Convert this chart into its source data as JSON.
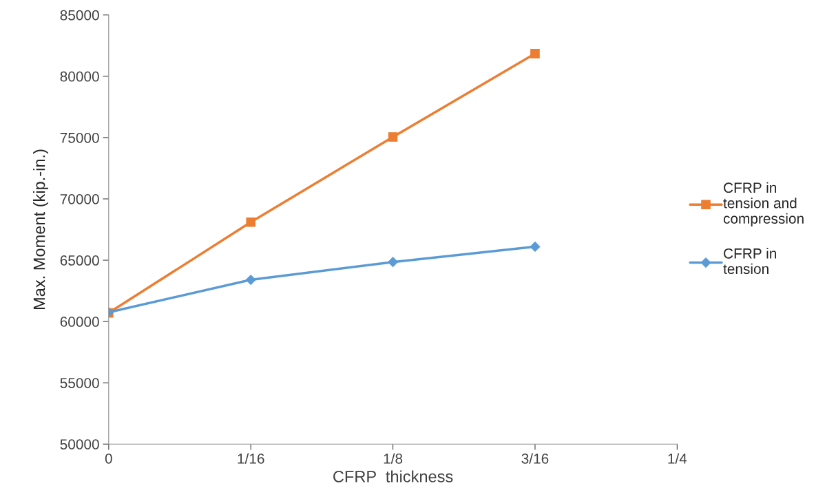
{
  "chart_data": {
    "type": "line",
    "xlabel": "CFRP  thickness",
    "ylabel": "Max. Moment (kip.-in.)",
    "xlim": [
      0,
      0.25
    ],
    "xticks": [
      0,
      {
        "value": 0.0625,
        "label": "1/16"
      },
      {
        "value": 0.125,
        "label": "1/8"
      },
      {
        "value": 0.1875,
        "label": "3/16"
      },
      {
        "value": 0.25,
        "label": "1/4"
      }
    ],
    "ylim": [
      50000,
      85000
    ],
    "yticks": [
      50000,
      55000,
      60000,
      65000,
      70000,
      75000,
      80000,
      85000
    ],
    "grid": false,
    "legend": "right",
    "series": [
      {
        "name": "CFRP in\ntension and\ncompression",
        "color": "#ed7d31",
        "marker": "square",
        "x": [
          0,
          0.0625,
          0.125,
          0.1875
        ],
        "values": [
          60700,
          68100,
          75050,
          81850
        ]
      },
      {
        "name": "CFRP in\ntension",
        "color": "#5b9bd5",
        "marker": "diamond",
        "x": [
          0,
          0.0625,
          0.125,
          0.1875
        ],
        "values": [
          60750,
          63400,
          64850,
          66100
        ]
      }
    ]
  }
}
